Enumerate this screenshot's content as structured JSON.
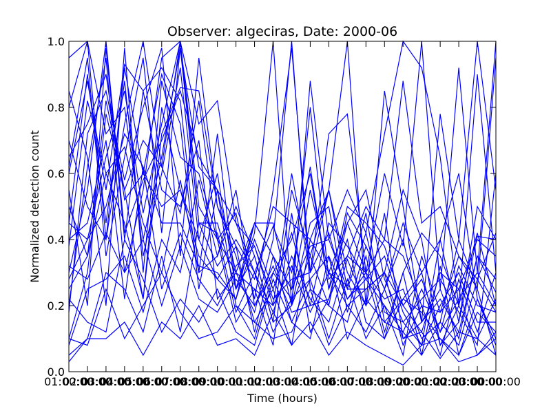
{
  "chart_data": {
    "type": "line",
    "title": "Observer: algeciras, Date: 2000-06",
    "xlabel": "Time (hours)",
    "ylabel": "Normalized detection count",
    "xlim": [
      1,
      24
    ],
    "ylim": [
      0.0,
      1.0
    ],
    "x_ticks": [
      1,
      3,
      5,
      7,
      9,
      11,
      13,
      15,
      17,
      19,
      21,
      23
    ],
    "x_minor_ticks": [
      2,
      4,
      6,
      8,
      10,
      12,
      14,
      16,
      18,
      20,
      22,
      24
    ],
    "x_tick_labels": [
      "01:00:00",
      "03:00:00",
      "05:00:00",
      "07:00:00",
      "09:00:00",
      "11:00:00",
      "13:00:00",
      "15:00:00",
      "17:00:00",
      "19:00:00",
      "21:00:00",
      "23:00:00"
    ],
    "x_minor_tick_labels": [
      "02:00:00",
      "04:00:00",
      "06:00:00",
      "08:00:00",
      "10:00:00",
      "12:00:00",
      "14:00:00",
      "16:00:00",
      "18:00:00",
      "20:00:00",
      "22:00:00",
      "00:00:00"
    ],
    "y_ticks": [
      0.0,
      0.2,
      0.4,
      0.6,
      0.8,
      1.0
    ],
    "y_tick_labels": [
      "0.0",
      "0.2",
      "0.4",
      "0.6",
      "0.8",
      "1.0"
    ],
    "grid": false,
    "line_color": "#0000ff",
    "x": [
      1,
      2,
      3,
      4,
      5,
      6,
      7,
      8,
      9,
      10,
      11,
      12,
      13,
      14,
      15,
      16,
      17,
      18,
      19,
      20,
      21,
      22,
      23,
      24
    ],
    "series": [
      {
        "values": [
          0.95,
          1.0,
          0.72,
          0.8,
          0.4,
          0.65,
          0.98,
          0.62,
          0.55,
          0.45,
          0.3,
          0.44,
          0.3,
          0.62,
          0.25,
          0.5,
          0.45,
          0.38,
          0.2,
          0.12,
          0.3,
          0.25,
          0.4,
          0.35
        ]
      },
      {
        "values": [
          0.2,
          0.62,
          0.95,
          0.3,
          0.55,
          0.95,
          1.0,
          0.5,
          0.4,
          0.3,
          0.25,
          0.2,
          0.32,
          0.18,
          0.3,
          0.45,
          0.55,
          0.28,
          0.15,
          0.08,
          0.4,
          0.6,
          0.22,
          0.1
        ]
      },
      {
        "values": [
          0.45,
          0.9,
          0.45,
          0.88,
          0.35,
          0.6,
          0.92,
          0.4,
          0.28,
          0.22,
          0.45,
          0.35,
          0.15,
          0.28,
          0.35,
          0.22,
          0.3,
          0.4,
          0.35,
          0.2,
          0.18,
          0.35,
          0.28,
          0.42
        ]
      },
      {
        "values": [
          0.1,
          0.3,
          0.78,
          0.55,
          0.22,
          0.72,
          0.86,
          0.85,
          0.5,
          0.35,
          0.15,
          0.25,
          0.42,
          0.2,
          0.45,
          0.38,
          0.28,
          0.2,
          0.12,
          0.25,
          0.12,
          0.22,
          0.3,
          0.2
        ]
      },
      {
        "values": [
          0.7,
          0.5,
          0.4,
          0.92,
          0.6,
          0.9,
          0.75,
          0.25,
          0.55,
          0.2,
          0.1,
          0.3,
          0.22,
          0.55,
          0.3,
          0.26,
          0.48,
          0.15,
          0.22,
          0.3,
          0.08,
          0.15,
          0.41,
          0.4
        ]
      },
      {
        "values": [
          0.38,
          0.82,
          0.6,
          0.68,
          0.45,
          0.3,
          0.58,
          0.3,
          0.35,
          0.5,
          0.35,
          0.15,
          0.2,
          0.35,
          0.55,
          0.3,
          0.2,
          0.48,
          0.1,
          0.15,
          0.25,
          0.1,
          0.35,
          0.24
        ]
      },
      {
        "values": [
          0.55,
          0.2,
          0.98,
          0.4,
          0.85,
          0.55,
          0.5,
          0.7,
          0.22,
          0.3,
          0.18,
          0.4,
          1.0,
          0.25,
          0.2,
          0.15,
          0.35,
          0.12,
          0.3,
          0.05,
          0.32,
          0.05,
          0.18,
          0.12
        ]
      },
      {
        "values": [
          0.28,
          0.4,
          0.5,
          0.72,
          0.62,
          0.45,
          0.45,
          0.32,
          0.3,
          0.22,
          0.4,
          0.25,
          0.08,
          0.4,
          0.3,
          0.2,
          0.25,
          0.3,
          0.08,
          0.2,
          0.05,
          0.28,
          0.12,
          0.3
        ]
      },
      {
        "values": [
          0.85,
          0.65,
          0.2,
          0.98,
          0.3,
          0.88,
          0.65,
          0.6,
          0.4,
          0.15,
          0.25,
          0.08,
          0.48,
          0.12,
          0.22,
          0.45,
          0.3,
          0.22,
          0.25,
          0.1,
          0.15,
          0.4,
          0.25,
          0.05
        ]
      },
      {
        "values": [
          0.18,
          0.72,
          0.85,
          0.58,
          0.8,
          0.98,
          0.35,
          0.95,
          0.5,
          0.38,
          0.12,
          0.35,
          0.25,
          0.38,
          0.4,
          0.25,
          0.42,
          0.18,
          0.15,
          0.22,
          0.28,
          0.18,
          0.08,
          0.6
        ]
      },
      {
        "values": [
          0.62,
          0.95,
          0.35,
          0.65,
          0.95,
          0.42,
          0.98,
          0.45,
          0.32,
          0.4,
          0.3,
          0.18,
          0.35,
          0.22,
          0.15,
          0.34,
          0.2,
          0.3,
          0.2,
          0.28,
          0.12,
          0.32,
          0.2,
          0.18
        ]
      },
      {
        "values": [
          0.25,
          0.35,
          0.6,
          0.45,
          0.22,
          0.8,
          0.55,
          0.4,
          0.6,
          0.25,
          0.45,
          0.45,
          0.2,
          0.45,
          0.5,
          0.18,
          0.38,
          0.25,
          0.4,
          0.15,
          0.22,
          0.12,
          0.35,
          0.28
        ]
      },
      {
        "values": [
          0.08,
          0.25,
          0.28,
          0.35,
          0.18,
          0.4,
          0.3,
          0.58,
          0.35,
          0.55,
          0.2,
          0.3,
          0.4,
          0.6,
          0.25,
          0.4,
          0.15,
          0.1,
          0.3,
          0.42,
          0.35,
          0.2,
          0.1,
          0.22
        ]
      },
      {
        "values": [
          0.4,
          0.45,
          0.7,
          0.22,
          0.62,
          0.25,
          0.42,
          0.28,
          0.2,
          0.32,
          0.38,
          0.22,
          0.28,
          0.3,
          0.42,
          0.22,
          0.28,
          0.35,
          0.18,
          0.08,
          0.2,
          0.3,
          0.15,
          0.15
        ]
      },
      {
        "values": [
          0.32,
          0.28,
          0.42,
          0.3,
          0.4,
          0.2,
          0.38,
          0.22,
          0.18,
          0.28,
          0.2,
          0.32,
          0.18,
          0.2,
          0.22,
          0.35,
          0.3,
          0.1,
          0.22,
          0.18,
          0.1,
          0.05,
          0.22,
          0.08
        ]
      },
      {
        "values": [
          0.05,
          0.1,
          0.3,
          0.25,
          0.12,
          0.35,
          0.12,
          0.45,
          0.42,
          0.18,
          0.3,
          0.12,
          0.22,
          0.28,
          0.1,
          0.28,
          0.1,
          0.2,
          0.05,
          0.35,
          0.18,
          0.25,
          0.05,
          0.12
        ]
      },
      {
        "values": [
          0.22,
          0.15,
          0.12,
          0.4,
          0.28,
          0.12,
          0.22,
          0.15,
          0.25,
          0.12,
          0.08,
          0.28,
          0.15,
          0.1,
          0.35,
          0.1,
          0.22,
          0.15,
          0.12,
          0.05,
          0.15,
          0.08,
          0.28,
          0.18
        ]
      },
      {
        "values": [
          0.1,
          0.08,
          0.25,
          0.1,
          0.2,
          0.3,
          0.18,
          0.1,
          0.12,
          0.2,
          0.15,
          0.1,
          0.12,
          0.25,
          0.08,
          0.2,
          0.12,
          0.25,
          0.1,
          0.12,
          0.04,
          0.12,
          0.1,
          0.05
        ]
      },
      {
        "values": [
          0.03,
          0.1,
          0.1,
          0.15,
          0.05,
          0.15,
          0.1,
          0.2,
          0.08,
          0.1,
          0.05,
          0.18,
          0.08,
          0.15,
          0.05,
          0.12,
          0.08,
          0.05,
          0.02,
          0.08,
          0.1,
          0.03,
          0.05,
          0.1
        ]
      },
      {
        "values": [
          0.5,
          0.35,
          0.82,
          0.55,
          0.7,
          0.62,
          1.0,
          0.75,
          0.82,
          0.45,
          0.38,
          0.2,
          0.6,
          0.3,
          0.72,
          0.78,
          0.3,
          0.6,
          0.38,
          1.0,
          0.25,
          0.92,
          0.3,
          1.0
        ]
      },
      {
        "values": [
          0.6,
          0.88,
          0.55,
          0.93,
          0.85,
          0.92,
          0.82,
          0.3,
          0.72,
          0.25,
          0.42,
          1.0,
          0.2,
          0.88,
          0.4,
          0.55,
          0.42,
          0.72,
          1.0,
          0.92,
          0.65,
          0.2,
          0.9,
          0.3
        ]
      },
      {
        "values": [
          0.8,
          1.0,
          0.4,
          0.75,
          1.0,
          0.62,
          0.48,
          0.82,
          0.4,
          0.48,
          0.22,
          0.55,
          0.98,
          0.3,
          0.55,
          1.0,
          0.2,
          0.85,
          0.5,
          0.15,
          0.78,
          0.4,
          1.0,
          0.55
        ]
      },
      {
        "values": [
          0.3,
          0.55,
          1.0,
          0.42,
          0.58,
          0.7,
          0.85,
          0.65,
          0.55,
          0.3,
          0.45,
          0.35,
          0.25,
          0.8,
          0.28,
          0.35,
          0.5,
          0.4,
          0.88,
          0.45,
          0.5,
          0.35,
          0.25,
          0.95
        ]
      },
      {
        "values": [
          0.65,
          0.75,
          0.9,
          0.52,
          0.6,
          0.5,
          0.55,
          0.35,
          0.28,
          0.38,
          0.28,
          0.5,
          0.45,
          0.4,
          0.55,
          0.25,
          0.25,
          0.3,
          0.55,
          0.4,
          0.08,
          0.2,
          0.42,
          0.2
        ]
      },
      {
        "values": [
          0.45,
          0.4,
          0.65,
          0.85,
          0.48,
          0.75,
          1.0,
          0.45,
          0.45,
          0.25,
          0.35,
          0.15,
          0.55,
          0.35,
          0.2,
          0.48,
          0.38,
          0.25,
          0.45,
          0.3,
          0.4,
          0.15,
          0.5,
          0.4
        ]
      }
    ]
  }
}
